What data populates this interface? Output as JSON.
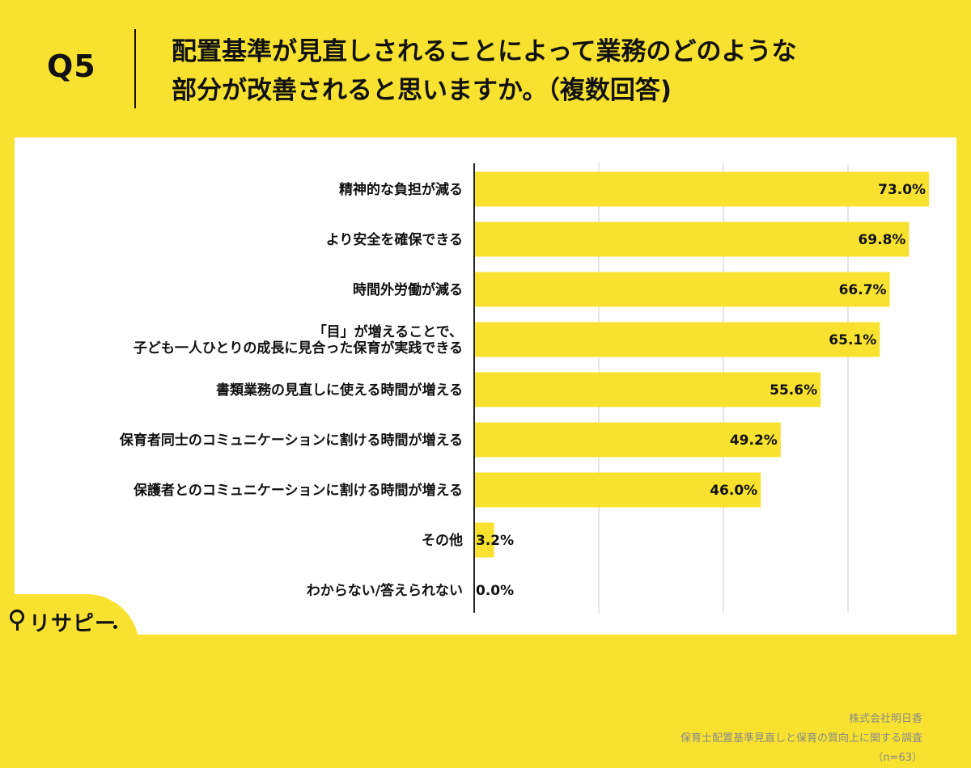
{
  "header": {
    "qnum": "Q5",
    "title": "配置基準が見直しされることによって業務のどのような\n部分が改善されると思いますか。（複数回答)"
  },
  "chart_data": {
    "type": "bar",
    "orientation": "horizontal",
    "categories": [
      "精神的な負担が減る",
      "より安全を確保できる",
      "時間外労働が減る",
      "「目」が増えることで、\n子ども一人ひとりの成長に見合った保育が実践できる",
      "書類業務の見直しに使える時間が増える",
      "保育者同士のコミュニケーションに割ける時間が増える",
      "保護者とのコミュニケーションに割ける時間が増える",
      "その他",
      "わからない/答えられない"
    ],
    "values": [
      73.0,
      69.8,
      66.7,
      65.1,
      55.6,
      49.2,
      46.0,
      3.2,
      0.0
    ],
    "value_labels": [
      "73.0%",
      "69.8%",
      "66.7%",
      "65.1%",
      "55.6%",
      "49.2%",
      "46.0%",
      "3.2%",
      "0.0%"
    ],
    "xlim": [
      0,
      80
    ],
    "grid": true,
    "bar_color": "#F8E22F",
    "grid_color": "#CCCCCC",
    "axis_color": "#222222"
  },
  "logo": {
    "text": "リサピー"
  },
  "source": {
    "company": "株式会社明日香",
    "survey": "保育士配置基準見直しと保育の質向上に関する調査",
    "n": "（n=63）"
  }
}
